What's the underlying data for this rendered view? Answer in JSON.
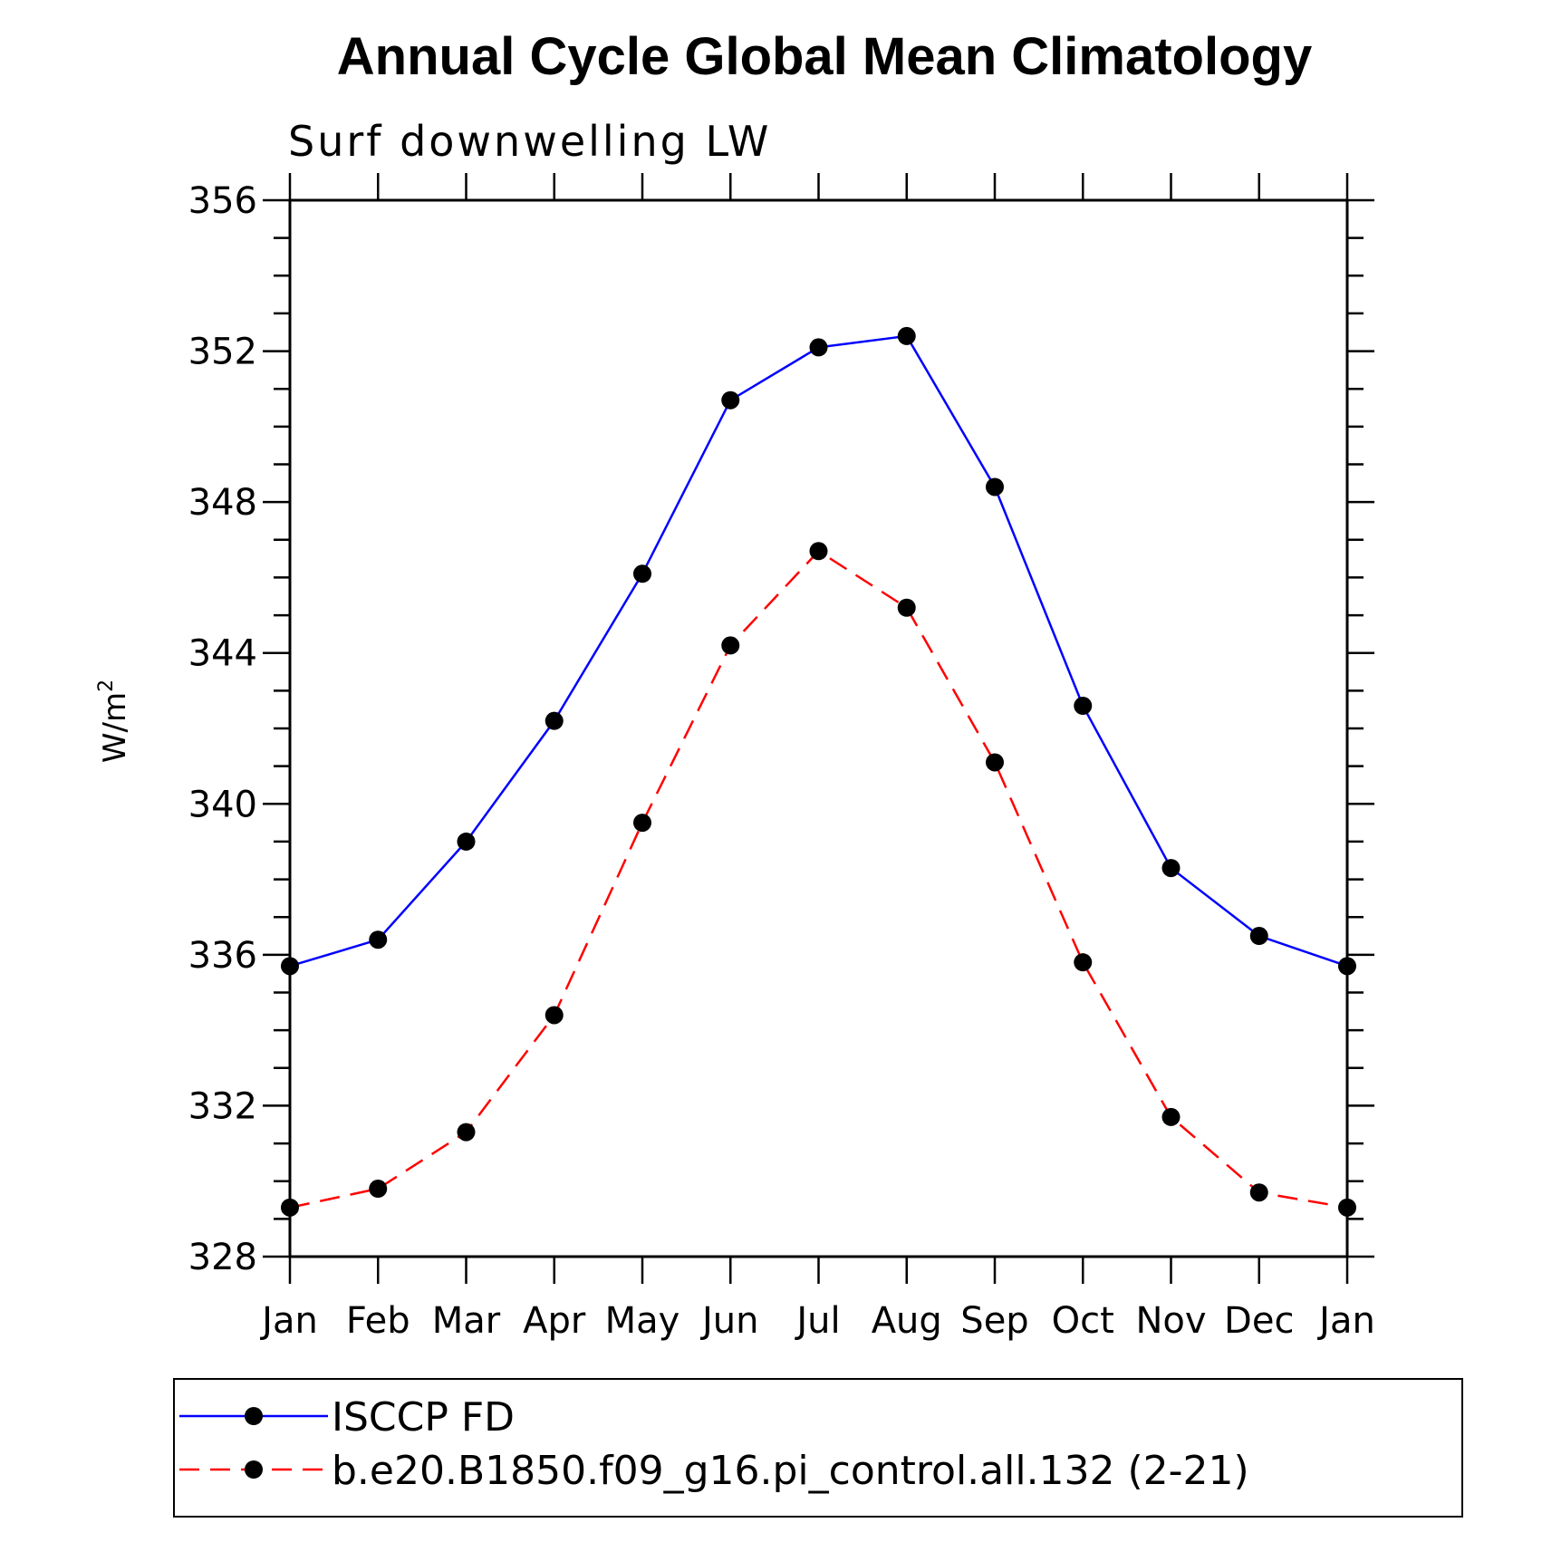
{
  "chart_data": {
    "type": "line",
    "title": "Annual Cycle Global Mean Climatology",
    "subtitle": "Surf downwelling LW",
    "ylabel": "W/m",
    "ylabel_sup": "2",
    "xlabel": "",
    "categories": [
      "Jan",
      "Feb",
      "Mar",
      "Apr",
      "May",
      "Jun",
      "Jul",
      "Aug",
      "Sep",
      "Oct",
      "Nov",
      "Dec",
      "Jan"
    ],
    "ylim": [
      328,
      356
    ],
    "yticks": [
      "328",
      "332",
      "336",
      "340",
      "344",
      "348",
      "352",
      "356"
    ],
    "grid": false,
    "legend_position": "bottom",
    "series": [
      {
        "name": "ISCCP FD",
        "color": "#0000ff",
        "dash": "solid",
        "marker": "filled-circle",
        "values": [
          335.7,
          336.4,
          339.0,
          342.2,
          346.1,
          350.7,
          352.1,
          352.4,
          348.4,
          342.6,
          338.3,
          336.5,
          335.7
        ]
      },
      {
        "name": "b.e20.B1850.f09_g16.pi_control.all.132 (2-21)",
        "color": "#ff0000",
        "dash": "dashed",
        "marker": "filled-circle",
        "values": [
          329.3,
          329.8,
          331.3,
          334.4,
          339.5,
          344.2,
          346.7,
          345.2,
          341.1,
          335.8,
          331.7,
          329.7,
          329.3
        ]
      }
    ]
  }
}
